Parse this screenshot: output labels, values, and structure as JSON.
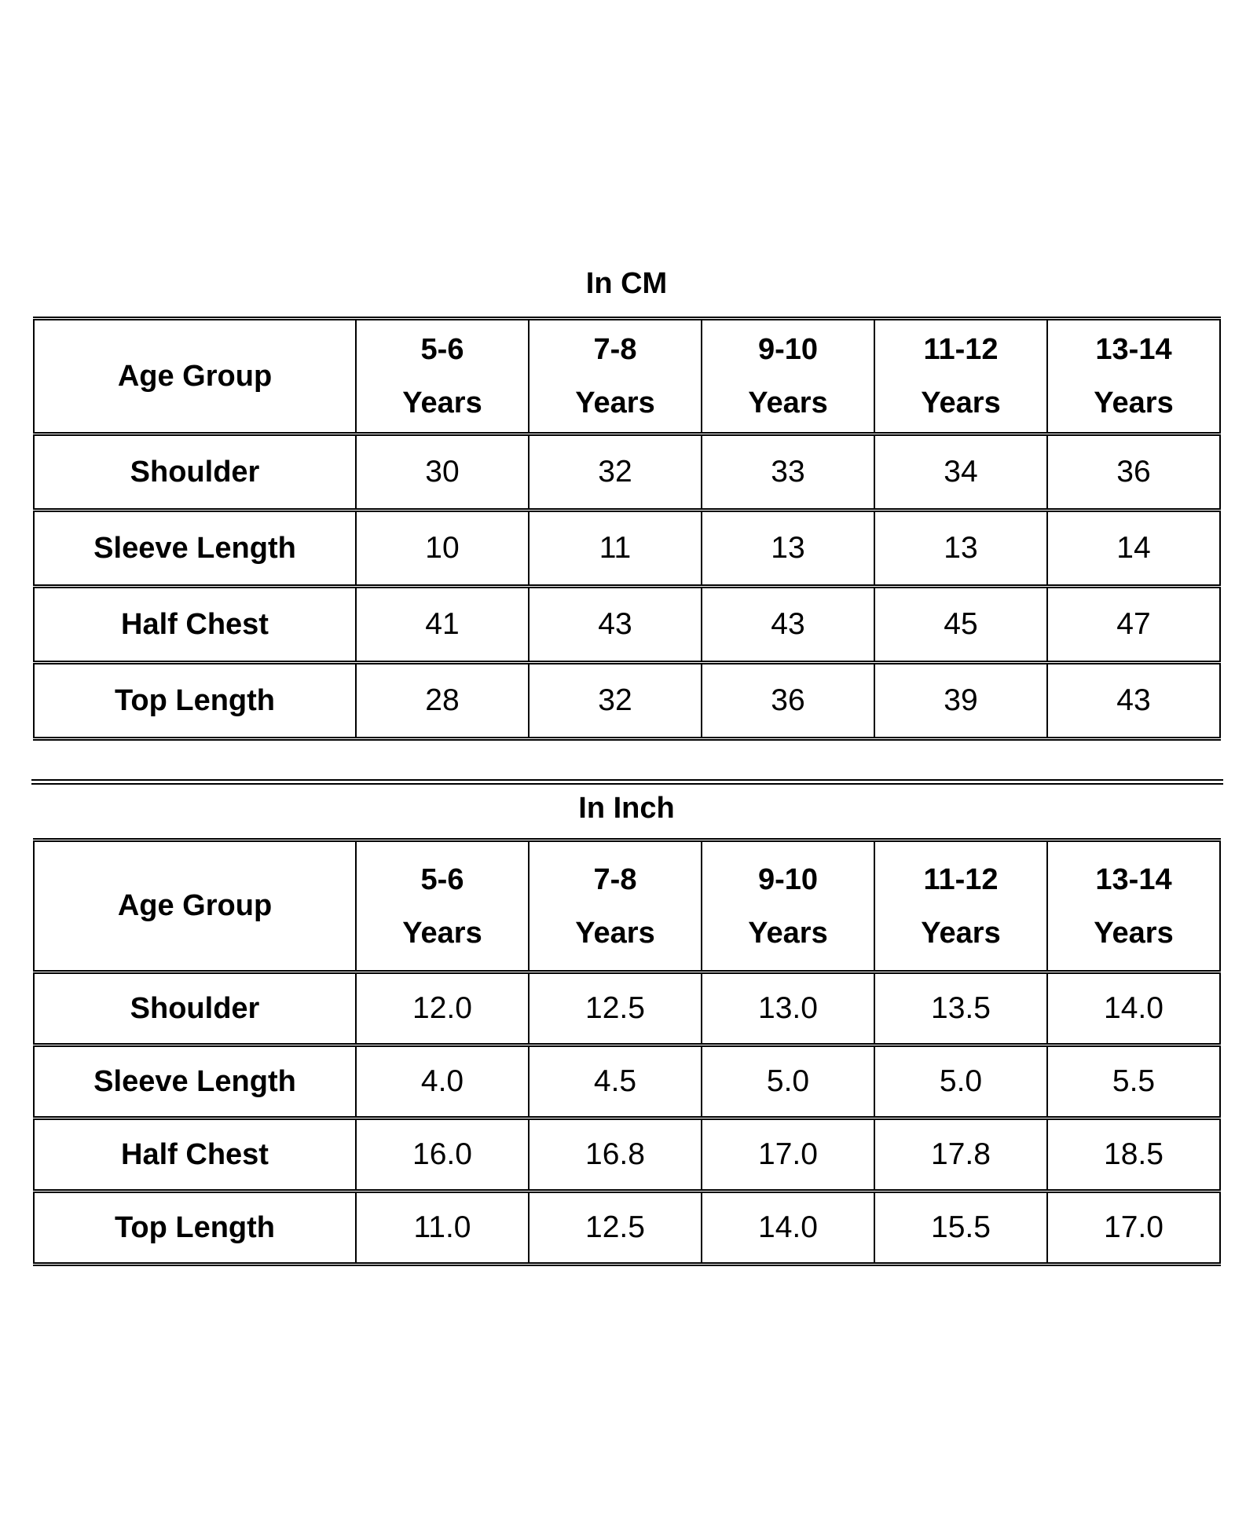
{
  "sections": {
    "cm": {
      "title": "In CM",
      "age_group_label": "Age Group",
      "columns": [
        {
          "range": "5-6",
          "unit": "Years"
        },
        {
          "range": "7-8",
          "unit": "Years"
        },
        {
          "range": "9-10",
          "unit": "Years"
        },
        {
          "range": "11-12",
          "unit": "Years"
        },
        {
          "range": "13-14",
          "unit": "Years"
        }
      ],
      "rows": [
        {
          "label": "Shoulder",
          "values": [
            "30",
            "32",
            "33",
            "34",
            "36"
          ]
        },
        {
          "label": "Sleeve Length",
          "values": [
            "10",
            "11",
            "13",
            "13",
            "14"
          ]
        },
        {
          "label": "Half Chest",
          "values": [
            "41",
            "43",
            "43",
            "45",
            "47"
          ]
        },
        {
          "label": "Top Length",
          "values": [
            "28",
            "32",
            "36",
            "39",
            "43"
          ]
        }
      ]
    },
    "inch": {
      "title": "In Inch",
      "age_group_label": "Age Group",
      "columns": [
        {
          "range": "5-6",
          "unit": "Years"
        },
        {
          "range": "7-8",
          "unit": "Years"
        },
        {
          "range": "9-10",
          "unit": "Years"
        },
        {
          "range": "11-12",
          "unit": "Years"
        },
        {
          "range": "13-14",
          "unit": "Years"
        }
      ],
      "rows": [
        {
          "label": "Shoulder",
          "values": [
            "12.0",
            "12.5",
            "13.0",
            "13.5",
            "14.0"
          ]
        },
        {
          "label": "Sleeve Length",
          "values": [
            "4.0",
            "4.5",
            "5.0",
            "5.0",
            "5.5"
          ]
        },
        {
          "label": "Half Chest",
          "values": [
            "16.0",
            "16.8",
            "17.0",
            "17.8",
            "18.5"
          ]
        },
        {
          "label": "Top Length",
          "values": [
            "11.0",
            "12.5",
            "14.0",
            "15.5",
            "17.0"
          ]
        }
      ]
    }
  }
}
